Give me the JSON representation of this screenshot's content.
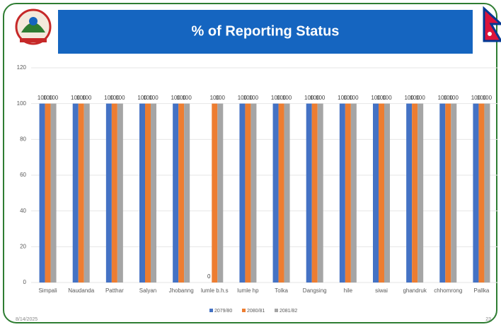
{
  "chart_data": {
    "type": "bar",
    "title": "% of Reporting Status",
    "categories": [
      "Simpali",
      "Naudanda",
      "Patthar",
      "Salyan",
      "Jhobanng",
      "lumle b.h.s",
      "lumle hp",
      "Tolka",
      "Dangsing",
      "hile",
      "siwai",
      "ghandruk",
      "chhomrong",
      "Pallka"
    ],
    "series": [
      {
        "name": "2079/80",
        "color": "#4472c4",
        "values": [
          100,
          100,
          100,
          100,
          100,
          0,
          100,
          100,
          100,
          100,
          100,
          100,
          100,
          100
        ]
      },
      {
        "name": "2080/81",
        "color": "#ed7d31",
        "values": [
          100,
          100,
          100,
          100,
          100,
          100,
          100,
          100,
          100,
          100,
          100,
          100,
          100,
          100
        ]
      },
      {
        "name": "2081/82",
        "color": "#a5a5a5",
        "values": [
          100,
          100,
          100,
          100,
          100,
          100,
          100,
          100,
          100,
          100,
          100,
          100,
          100,
          100
        ]
      }
    ],
    "ylim": [
      0,
      120
    ],
    "yticks": [
      0,
      20,
      40,
      60,
      80,
      100,
      120
    ],
    "grid": true,
    "legend": "bottom",
    "date": "8/14/2025",
    "page_number": "23"
  }
}
